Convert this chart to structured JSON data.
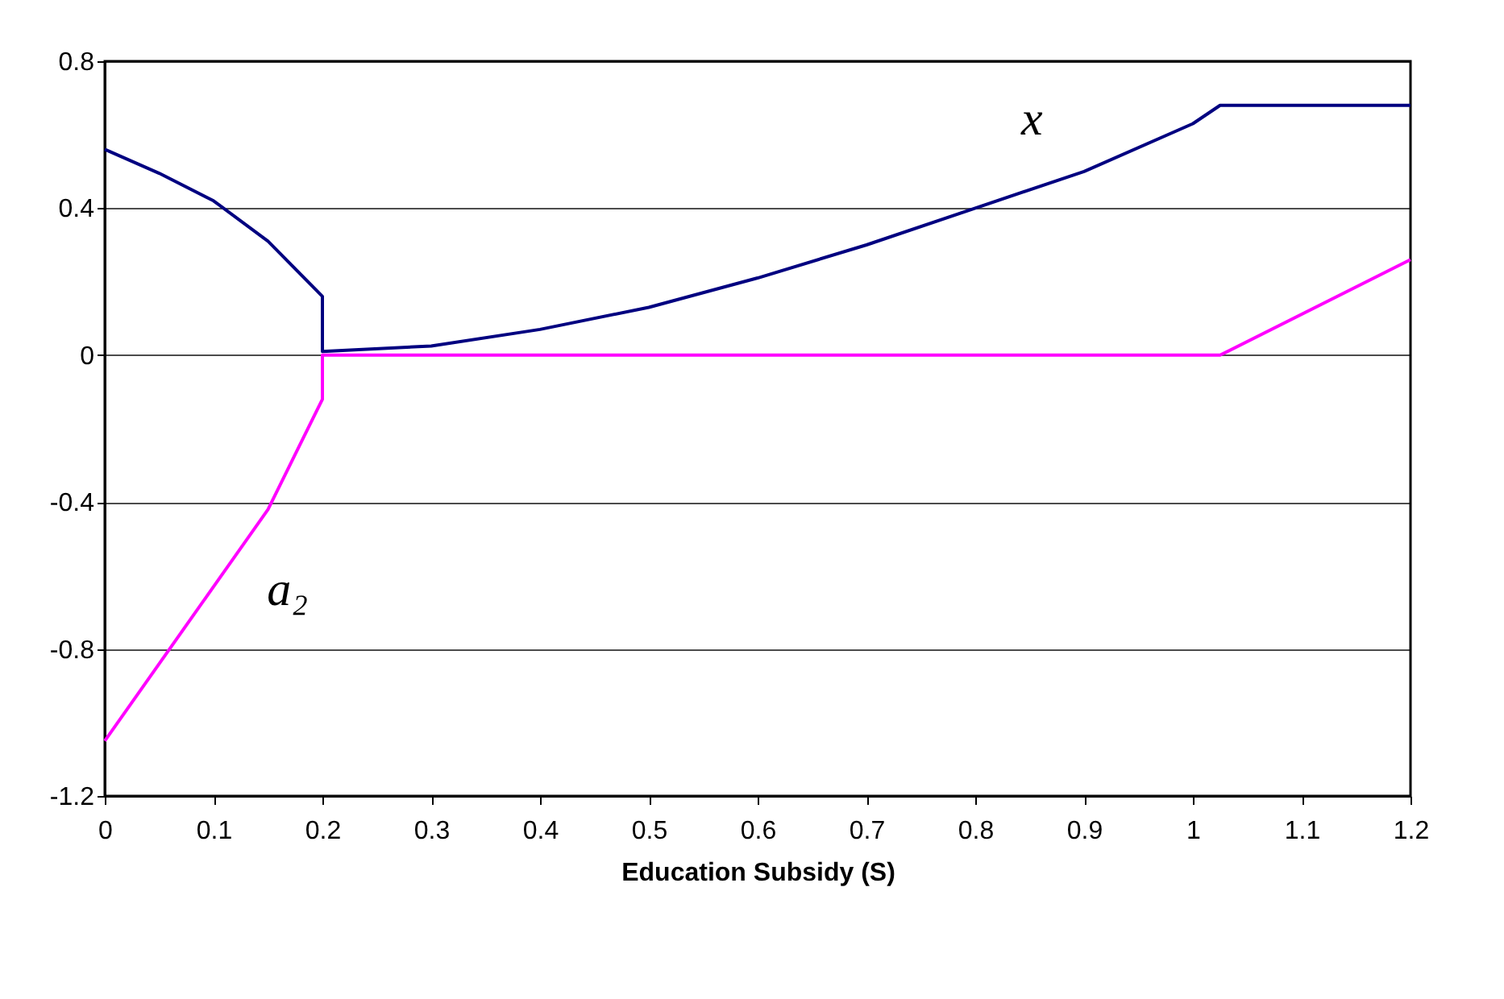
{
  "chart_data": {
    "type": "line",
    "xlabel": "Education Subsidy (S)",
    "xlim": [
      0,
      1.2
    ],
    "xticks": [
      0,
      0.1,
      0.2,
      0.3,
      0.4,
      0.5,
      0.6,
      0.7,
      0.8,
      0.9,
      1,
      1.1,
      1.2
    ],
    "ylim": [
      -1.2,
      0.8
    ],
    "yticks": [
      -1.2,
      -0.8,
      -0.4,
      0,
      0.4,
      0.8
    ],
    "grid": "y",
    "legend": false,
    "marker": "none",
    "line_style": "solid",
    "series": [
      {
        "color": "#000080",
        "x": [
          0,
          0.05,
          0.1,
          0.15,
          0.2,
          0.2,
          0.3,
          0.4,
          0.5,
          0.6,
          0.7,
          0.8,
          0.9,
          1.0,
          1.025,
          1.2
        ],
        "values": [
          0.56,
          0.495,
          0.42,
          0.31,
          0.16,
          0.01,
          0.025,
          0.07,
          0.13,
          0.21,
          0.3,
          0.4,
          0.5,
          0.63,
          0.68,
          0.68
        ]
      },
      {
        "color": "#ff00ff",
        "x": [
          0,
          0.05,
          0.1,
          0.15,
          0.2,
          0.2,
          1.025,
          1.2
        ],
        "values": [
          -1.05,
          -0.84,
          -0.63,
          -0.42,
          -0.12,
          0,
          0,
          0.26
        ]
      }
    ],
    "annotations": [
      "x",
      "a₂"
    ]
  }
}
